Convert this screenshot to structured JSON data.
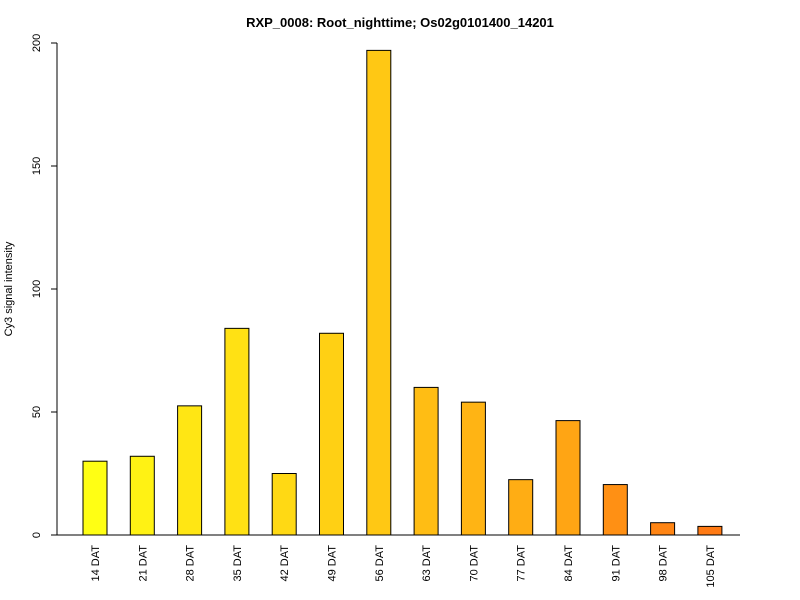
{
  "chart_data": {
    "type": "bar",
    "title": "RXP_0008: Root_nighttime; Os02g0101400_14201",
    "xlabel": "",
    "ylabel": "Cy3 signal intensity",
    "ylim": [
      0,
      200
    ],
    "yticks": [
      0,
      50,
      100,
      150,
      200
    ],
    "grid": false,
    "categories": [
      "14 DAT",
      "21 DAT",
      "28 DAT",
      "35 DAT",
      "42 DAT",
      "49 DAT",
      "56 DAT",
      "63 DAT",
      "70 DAT",
      "77 DAT",
      "84 DAT",
      "91 DAT",
      "98 DAT",
      "105 DAT"
    ],
    "values": [
      30,
      32,
      52.5,
      84,
      25,
      82,
      197,
      60,
      54,
      22.5,
      46.5,
      20.5,
      5,
      3.5
    ],
    "colors": [
      "#FFFF14",
      "#FFF214",
      "#FFE614",
      "#FFE114",
      "#FFD914",
      "#FFD014",
      "#FFC814",
      "#FFBD14",
      "#FFB414",
      "#FFAD14",
      "#FFA514",
      "#FF9014",
      "#FF8514",
      "#FF7A14"
    ]
  }
}
